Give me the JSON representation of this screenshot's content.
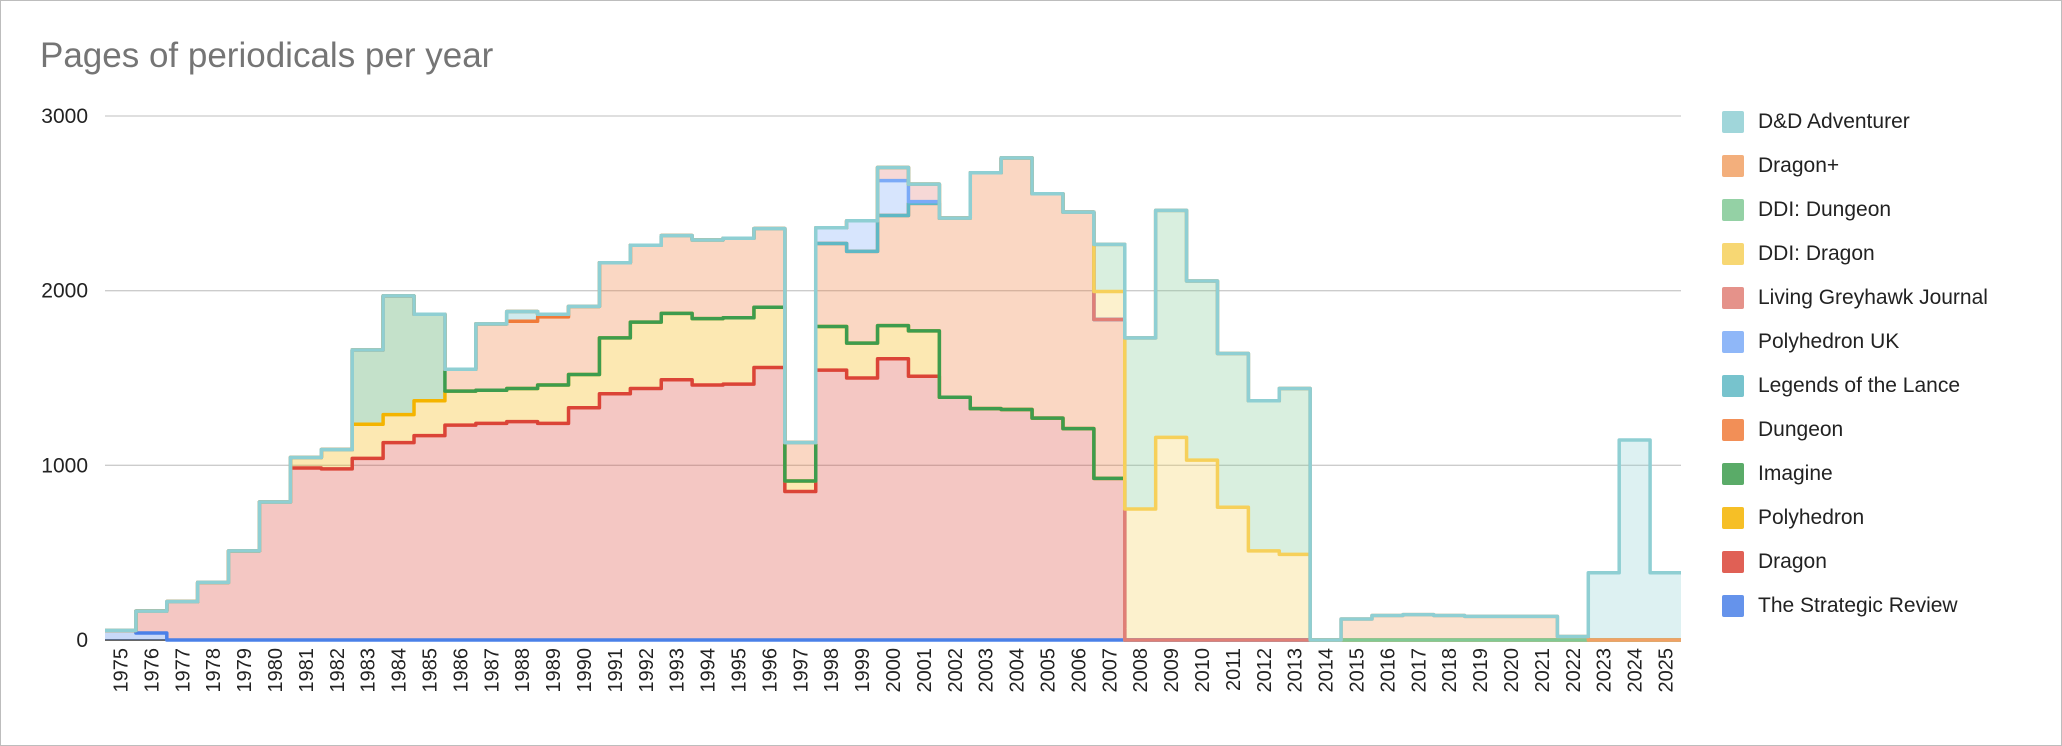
{
  "chart_data": {
    "type": "area",
    "subtype": "stepped-stacked",
    "title": "Pages of periodicals per year",
    "xlabel": "",
    "ylabel": "",
    "ylim": [
      0,
      3000
    ],
    "yticks": [
      "0",
      "1000",
      "2000",
      "3000"
    ],
    "grid": true,
    "legend_position": "right",
    "categories": [
      "1975",
      "1976",
      "1977",
      "1978",
      "1979",
      "1980",
      "1981",
      "1982",
      "1983",
      "1984",
      "1985",
      "1986",
      "1987",
      "1988",
      "1989",
      "1990",
      "1991",
      "1992",
      "1993",
      "1994",
      "1995",
      "1996",
      "1997",
      "1998",
      "1999",
      "2000",
      "2001",
      "2002",
      "2003",
      "2004",
      "2005",
      "2006",
      "2007",
      "2008",
      "2009",
      "2010",
      "2011",
      "2012",
      "2013",
      "2014",
      "2015",
      "2016",
      "2017",
      "2018",
      "2019",
      "2020",
      "2021",
      "2022",
      "2023",
      "2024",
      "2025"
    ],
    "series": [
      {
        "name": "The Strategic Review",
        "color": "#4a80e8",
        "values": [
          55,
          40,
          0,
          0,
          0,
          0,
          0,
          0,
          0,
          0,
          0,
          0,
          0,
          0,
          0,
          0,
          0,
          0,
          0,
          0,
          0,
          0,
          0,
          0,
          0,
          0,
          0,
          0,
          0,
          0,
          0,
          0,
          0,
          0,
          0,
          0,
          0,
          0,
          0,
          0,
          0,
          0,
          0,
          0,
          0,
          0,
          0,
          0,
          0,
          0,
          0
        ]
      },
      {
        "name": "Dragon",
        "color": "#db4437",
        "values": [
          0,
          125,
          220,
          330,
          510,
          790,
          985,
          980,
          1040,
          1130,
          1170,
          1230,
          1240,
          1250,
          1240,
          1330,
          1410,
          1440,
          1490,
          1460,
          1465,
          1560,
          850,
          1545,
          1500,
          1610,
          1510,
          1390,
          1325,
          1320,
          1270,
          1210,
          925,
          0,
          0,
          0,
          0,
          0,
          0,
          0,
          0,
          0,
          0,
          0,
          0,
          0,
          0,
          0,
          0,
          0,
          0
        ]
      },
      {
        "name": "Polyhedron",
        "color": "#f4b400",
        "values": [
          0,
          0,
          0,
          0,
          0,
          0,
          60,
          110,
          195,
          160,
          200,
          195,
          190,
          190,
          220,
          190,
          320,
          380,
          380,
          380,
          380,
          345,
          60,
          250,
          200,
          190,
          260,
          0,
          0,
          0,
          0,
          0,
          0,
          0,
          0,
          0,
          0,
          0,
          0,
          0,
          0,
          0,
          0,
          0,
          0,
          0,
          0,
          0,
          0,
          0,
          0
        ]
      },
      {
        "name": "Imagine",
        "color": "#3d9c4e",
        "values": [
          0,
          0,
          0,
          0,
          0,
          0,
          0,
          0,
          425,
          680,
          495,
          0,
          0,
          0,
          0,
          0,
          0,
          0,
          0,
          0,
          0,
          0,
          0,
          0,
          0,
          0,
          0,
          0,
          0,
          0,
          0,
          0,
          0,
          0,
          0,
          0,
          0,
          0,
          0,
          0,
          0,
          0,
          0,
          0,
          0,
          0,
          0,
          0,
          0,
          0,
          0
        ]
      },
      {
        "name": "Dungeon",
        "color": "#f07b39",
        "values": [
          0,
          0,
          0,
          0,
          0,
          0,
          0,
          0,
          0,
          0,
          0,
          125,
          380,
          385,
          390,
          390,
          430,
          440,
          445,
          450,
          455,
          450,
          220,
          475,
          525,
          630,
          730,
          1025,
          1350,
          1440,
          1285,
          1240,
          910,
          0,
          0,
          0,
          0,
          0,
          0,
          0,
          0,
          0,
          0,
          0,
          0,
          0,
          0,
          0,
          0,
          0,
          0
        ]
      },
      {
        "name": "Legends of the Lance",
        "color": "#5fb8c4",
        "values": [
          0,
          0,
          0,
          0,
          0,
          0,
          0,
          0,
          0,
          0,
          0,
          0,
          0,
          55,
          15,
          0,
          0,
          0,
          0,
          0,
          0,
          0,
          0,
          0,
          0,
          0,
          0,
          0,
          0,
          0,
          0,
          0,
          0,
          0,
          0,
          0,
          0,
          0,
          0,
          0,
          0,
          0,
          0,
          0,
          0,
          0,
          0,
          0,
          0,
          0,
          0
        ]
      },
      {
        "name": "Polyhedron UK",
        "color": "#7baaf7",
        "values": [
          0,
          0,
          0,
          0,
          0,
          0,
          0,
          0,
          0,
          0,
          0,
          0,
          0,
          0,
          0,
          0,
          0,
          0,
          0,
          0,
          0,
          0,
          0,
          90,
          175,
          200,
          10,
          0,
          0,
          0,
          0,
          0,
          0,
          0,
          0,
          0,
          0,
          0,
          0,
          0,
          0,
          0,
          0,
          0,
          0,
          0,
          0,
          0,
          0,
          0,
          0
        ]
      },
      {
        "name": "Living Greyhawk Journal",
        "color": "#e07f76",
        "values": [
          0,
          0,
          0,
          0,
          0,
          0,
          0,
          0,
          0,
          0,
          0,
          0,
          0,
          0,
          0,
          0,
          0,
          0,
          0,
          0,
          0,
          0,
          0,
          0,
          0,
          75,
          100,
          0,
          0,
          0,
          0,
          0,
          0,
          0,
          0,
          0,
          0,
          0,
          0,
          0,
          0,
          0,
          0,
          0,
          0,
          0,
          0,
          0,
          0,
          0,
          0
        ]
      },
      {
        "name": "DDI: Dragon",
        "color": "#f6d05a",
        "values": [
          0,
          0,
          0,
          0,
          0,
          0,
          0,
          0,
          0,
          0,
          0,
          0,
          0,
          0,
          0,
          0,
          0,
          0,
          0,
          0,
          0,
          0,
          0,
          0,
          0,
          0,
          0,
          0,
          0,
          0,
          0,
          0,
          160,
          750,
          1160,
          1030,
          760,
          510,
          490,
          0,
          0,
          0,
          0,
          0,
          0,
          0,
          0,
          0,
          0,
          0,
          0
        ]
      },
      {
        "name": "DDI: Dungeon",
        "color": "#81c995",
        "values": [
          0,
          0,
          0,
          0,
          0,
          0,
          0,
          0,
          0,
          0,
          0,
          0,
          0,
          0,
          0,
          0,
          0,
          0,
          0,
          0,
          0,
          0,
          0,
          0,
          0,
          0,
          0,
          0,
          0,
          0,
          0,
          0,
          270,
          980,
          1300,
          1025,
          880,
          860,
          950,
          0,
          0,
          0,
          0,
          0,
          0,
          0,
          0,
          0,
          0,
          0,
          0
        ]
      },
      {
        "name": "Dragon+",
        "color": "#f1a165",
        "values": [
          0,
          0,
          0,
          0,
          0,
          0,
          0,
          0,
          0,
          0,
          0,
          0,
          0,
          0,
          0,
          0,
          0,
          0,
          0,
          0,
          0,
          0,
          0,
          0,
          0,
          0,
          0,
          0,
          0,
          0,
          0,
          0,
          0,
          0,
          0,
          0,
          0,
          0,
          0,
          0,
          120,
          140,
          145,
          140,
          135,
          135,
          135,
          20,
          0,
          0,
          0
        ]
      },
      {
        "name": "D&D Adventurer",
        "color": "#8fcfd3",
        "values": [
          0,
          0,
          0,
          0,
          0,
          0,
          0,
          0,
          0,
          0,
          0,
          0,
          0,
          0,
          0,
          0,
          0,
          0,
          0,
          0,
          0,
          0,
          0,
          0,
          0,
          0,
          0,
          0,
          0,
          0,
          0,
          0,
          0,
          0,
          0,
          0,
          0,
          0,
          0,
          0,
          0,
          0,
          0,
          0,
          0,
          0,
          0,
          0,
          385,
          1145,
          385
        ]
      }
    ]
  }
}
